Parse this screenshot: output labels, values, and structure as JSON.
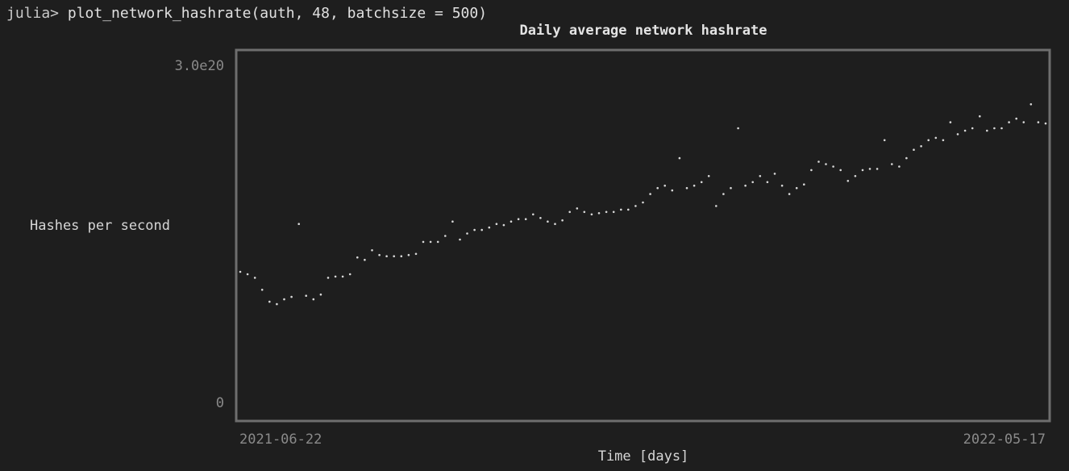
{
  "terminal": {
    "prompt": "julia>",
    "command": " plot_network_hashrate(auth, 48, batchsize = 500)"
  },
  "chart_data": {
    "type": "scatter",
    "title": "Daily average network hashrate",
    "xlabel": "Time [days]",
    "ylabel": "Hashes per second",
    "ylim": [
      0,
      3e+20
    ],
    "xlim": [
      "2021-06-22",
      "2022-05-17"
    ],
    "y_tick_labels": [
      "0",
      "3.0e20"
    ],
    "x_tick_labels": [
      "2021-06-22",
      "2022-05-17"
    ],
    "grid": false,
    "legend": "none",
    "colors": {
      "marker": "#d8d8d8",
      "frame": "#6e6e6e",
      "background": "#1e1e1e"
    },
    "series": [
      {
        "values_note": "",
        "x": [
          0,
          3,
          6,
          9,
          12,
          15,
          18,
          21,
          24,
          27,
          30,
          33,
          36,
          39,
          42,
          45,
          48,
          51,
          54,
          57,
          60,
          63,
          66,
          69,
          72,
          75,
          78,
          81,
          84,
          87,
          90,
          93,
          96,
          99,
          102,
          105,
          108,
          111,
          114,
          117,
          120,
          123,
          126,
          129,
          132,
          135,
          138,
          141,
          144,
          147,
          150,
          153,
          156,
          159,
          162,
          165,
          168,
          171,
          174,
          177,
          180,
          183,
          186,
          189,
          192,
          195,
          198,
          201,
          204,
          207,
          210,
          213,
          216,
          219,
          222,
          225,
          228,
          231,
          234,
          237,
          240,
          243,
          246,
          249,
          252,
          255,
          258,
          261,
          264,
          267,
          270,
          273,
          276,
          279,
          282,
          285,
          288,
          291,
          294,
          297,
          300,
          303,
          306,
          309,
          312,
          315,
          318,
          321,
          324,
          327,
          330
        ],
        "y": [
          1.2e+20,
          1.18e+20,
          1.15e+20,
          1.05e+20,
          9.5e+19,
          9.3e+19,
          9.7e+19,
          9.9e+19,
          1.6e+20,
          1e+20,
          9.7e+19,
          1.01e+20,
          1.15e+20,
          1.16e+20,
          1.16e+20,
          1.18e+20,
          1.32e+20,
          1.3e+20,
          1.38e+20,
          1.34e+20,
          1.33e+20,
          1.33e+20,
          1.33e+20,
          1.34e+20,
          1.35e+20,
          1.45e+20,
          1.45e+20,
          1.45e+20,
          1.5e+20,
          1.62e+20,
          1.47e+20,
          1.52e+20,
          1.55e+20,
          1.55e+20,
          1.57e+20,
          1.6e+20,
          1.59e+20,
          1.62e+20,
          1.64e+20,
          1.64e+20,
          1.68e+20,
          1.65e+20,
          1.62e+20,
          1.6e+20,
          1.63e+20,
          1.7e+20,
          1.73e+20,
          1.7e+20,
          1.68e+20,
          1.69e+20,
          1.7e+20,
          1.7e+20,
          1.72e+20,
          1.72e+20,
          1.75e+20,
          1.78e+20,
          1.85e+20,
          1.9e+20,
          1.92e+20,
          1.88e+20,
          2.15e+20,
          1.9e+20,
          1.92e+20,
          1.95e+20,
          2e+20,
          1.75e+20,
          1.85e+20,
          1.9e+20,
          2.4e+20,
          1.92e+20,
          1.95e+20,
          2e+20,
          1.95e+20,
          2.02e+20,
          1.92e+20,
          1.85e+20,
          1.9e+20,
          1.93e+20,
          2.05e+20,
          2.12e+20,
          2.1e+20,
          2.08e+20,
          2.05e+20,
          1.96e+20,
          2e+20,
          2.05e+20,
          2.06e+20,
          2.06e+20,
          2.3e+20,
          2.1e+20,
          2.08e+20,
          2.15e+20,
          2.22e+20,
          2.25e+20,
          2.3e+20,
          2.32e+20,
          2.3e+20,
          2.45e+20,
          2.35e+20,
          2.38e+20,
          2.4e+20,
          2.5e+20,
          2.38e+20,
          2.4e+20,
          2.4e+20,
          2.45e+20,
          2.48e+20,
          2.45e+20,
          2.6e+20,
          2.45e+20,
          2.44e+20
        ]
      }
    ]
  }
}
